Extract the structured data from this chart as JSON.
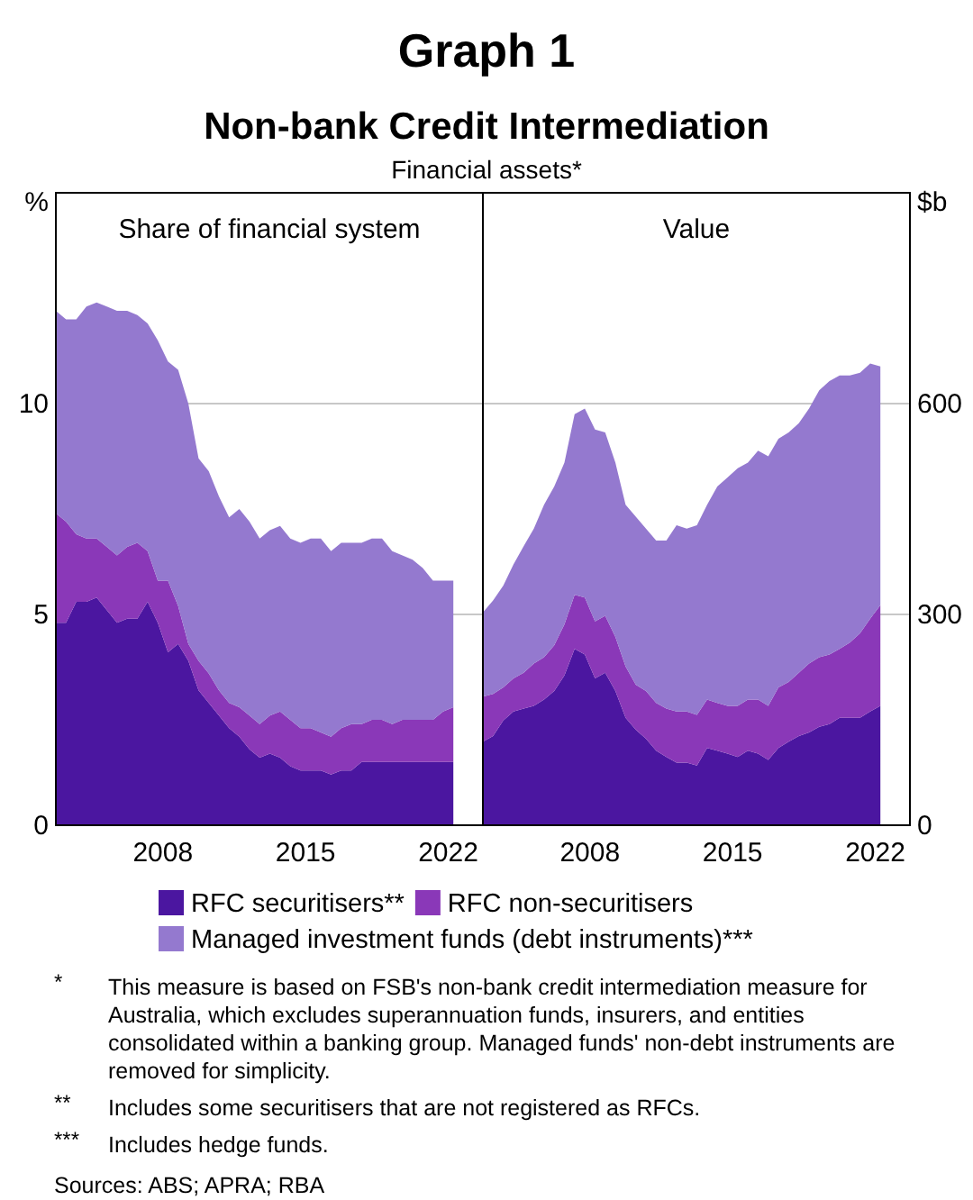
{
  "chart_data": [
    {
      "type": "area",
      "title": "Share of financial system",
      "ylabel": "%",
      "stacked": true,
      "grid": "y",
      "legend": "bottom",
      "annotations": [
        "Graph 1",
        "Non-bank Credit Intermediation",
        "Financial assets*",
        "* This measure is based on FSB's non-bank credit intermediation measure for Australia, which excludes superannuation funds, insurers, and entities consolidated within a banking group. Managed funds' non-debt instruments are removed for simplicity.",
        "** Includes some securitisers that are not registered as RFCs.",
        "*** Includes hedge funds.",
        "Sources: ABS; APRA; RBA"
      ],
      "x": [
        2003.25,
        2003.75,
        2004.25,
        2004.75,
        2005.25,
        2005.75,
        2006.25,
        2006.75,
        2007.25,
        2007.75,
        2008.25,
        2008.75,
        2009.25,
        2009.75,
        2010.25,
        2010.75,
        2011.25,
        2011.75,
        2012.25,
        2012.75,
        2013.25,
        2013.75,
        2014.25,
        2014.75,
        2015.25,
        2015.75,
        2016.25,
        2016.75,
        2017.25,
        2017.75,
        2018.25,
        2018.75,
        2019.25,
        2019.75,
        2020.25,
        2020.75,
        2021.25,
        2021.75,
        2022.25,
        2022.75
      ],
      "xlim": [
        2003.25,
        2024.2
      ],
      "xticks": [
        {
          "value": 2008.5,
          "label": "2008"
        },
        {
          "value": 2015.5,
          "label": "2015"
        },
        {
          "value": 2022.5,
          "label": "2022"
        }
      ],
      "ylim": [
        0,
        15
      ],
      "yticks": [
        0,
        5,
        10
      ],
      "series": [
        {
          "name": "RFC securitisers**",
          "color": "#4b16a0",
          "values": [
            4.8,
            4.8,
            5.3,
            5.3,
            5.4,
            5.1,
            4.8,
            4.9,
            4.9,
            5.3,
            4.8,
            4.1,
            4.3,
            3.9,
            3.2,
            2.9,
            2.6,
            2.3,
            2.1,
            1.8,
            1.6,
            1.7,
            1.6,
            1.4,
            1.3,
            1.3,
            1.3,
            1.2,
            1.3,
            1.3,
            1.5,
            1.5,
            1.5,
            1.5,
            1.5,
            1.5,
            1.5,
            1.5,
            1.5,
            1.5
          ]
        },
        {
          "name": "RFC non-securitisers",
          "color": "#8a38b8",
          "values": [
            2.6,
            2.4,
            1.6,
            1.5,
            1.4,
            1.5,
            1.6,
            1.7,
            1.8,
            1.2,
            1.0,
            1.7,
            0.9,
            0.4,
            0.7,
            0.7,
            0.6,
            0.6,
            0.7,
            0.8,
            0.8,
            0.9,
            1.1,
            1.1,
            1.0,
            1.0,
            0.9,
            0.9,
            1.0,
            1.1,
            0.9,
            1.0,
            1.0,
            0.9,
            1.0,
            1.0,
            1.0,
            1.0,
            1.2,
            1.3
          ]
        },
        {
          "name": "Managed investment funds (debt instruments)***",
          "color": "#9479cf",
          "values": [
            4.8,
            4.8,
            5.1,
            5.5,
            5.6,
            5.7,
            5.8,
            5.6,
            5.4,
            5.4,
            5.7,
            5.2,
            5.6,
            5.7,
            4.8,
            4.8,
            4.6,
            4.4,
            4.7,
            4.6,
            4.4,
            4.4,
            4.4,
            4.3,
            4.4,
            4.5,
            4.6,
            4.4,
            4.4,
            4.3,
            4.3,
            4.3,
            4.3,
            4.1,
            3.9,
            3.8,
            3.6,
            3.3,
            3.1,
            3.0
          ]
        }
      ]
    },
    {
      "type": "area",
      "title": "Value",
      "ylabel": "$b",
      "stacked": true,
      "grid": "y",
      "x": [
        2003.25,
        2003.75,
        2004.25,
        2004.75,
        2005.25,
        2005.75,
        2006.25,
        2006.75,
        2007.25,
        2007.75,
        2008.25,
        2008.75,
        2009.25,
        2009.75,
        2010.25,
        2010.75,
        2011.25,
        2011.75,
        2012.25,
        2012.75,
        2013.25,
        2013.75,
        2014.25,
        2014.75,
        2015.25,
        2015.75,
        2016.25,
        2016.75,
        2017.25,
        2017.75,
        2018.25,
        2018.75,
        2019.25,
        2019.75,
        2020.25,
        2020.75,
        2021.25,
        2021.75,
        2022.25,
        2022.75
      ],
      "xlim": [
        2003.25,
        2024.2
      ],
      "xticks": [
        {
          "value": 2008.5,
          "label": "2008"
        },
        {
          "value": 2015.5,
          "label": "2015"
        },
        {
          "value": 2022.5,
          "label": "2022"
        }
      ],
      "ylim": [
        0,
        900
      ],
      "yticks": [
        0,
        300,
        600
      ],
      "series": [
        {
          "color": "#4b16a0",
          "values": [
            119,
            127,
            149,
            162,
            166,
            170,
            179,
            191,
            213,
            251,
            243,
            209,
            217,
            191,
            153,
            136,
            123,
            106,
            97,
            89,
            89,
            85,
            110,
            106,
            102,
            97,
            106,
            102,
            93,
            110,
            119,
            127,
            132,
            140,
            144,
            153,
            153,
            153,
            162,
            170
          ]
        },
        {
          "color": "#8a38b8",
          "values": [
            64,
            60,
            47,
            47,
            51,
            60,
            60,
            65,
            73,
            77,
            81,
            81,
            81,
            77,
            73,
            64,
            68,
            68,
            69,
            73,
            73,
            72,
            69,
            68,
            68,
            73,
            73,
            77,
            77,
            86,
            85,
            90,
            98,
            99,
            99,
            98,
            107,
            120,
            132,
            143
          ]
        },
        {
          "color": "#9479cf",
          "values": [
            120,
            133,
            145,
            162,
            180,
            192,
            217,
            226,
            230,
            257,
            269,
            273,
            261,
            248,
            230,
            239,
            231,
            231,
            239,
            265,
            260,
            270,
            277,
            308,
            325,
            338,
            337,
            354,
            355,
            354,
            355,
            355,
            363,
            380,
            389,
            389,
            380,
            371,
            363,
            340
          ]
        }
      ]
    }
  ]
}
